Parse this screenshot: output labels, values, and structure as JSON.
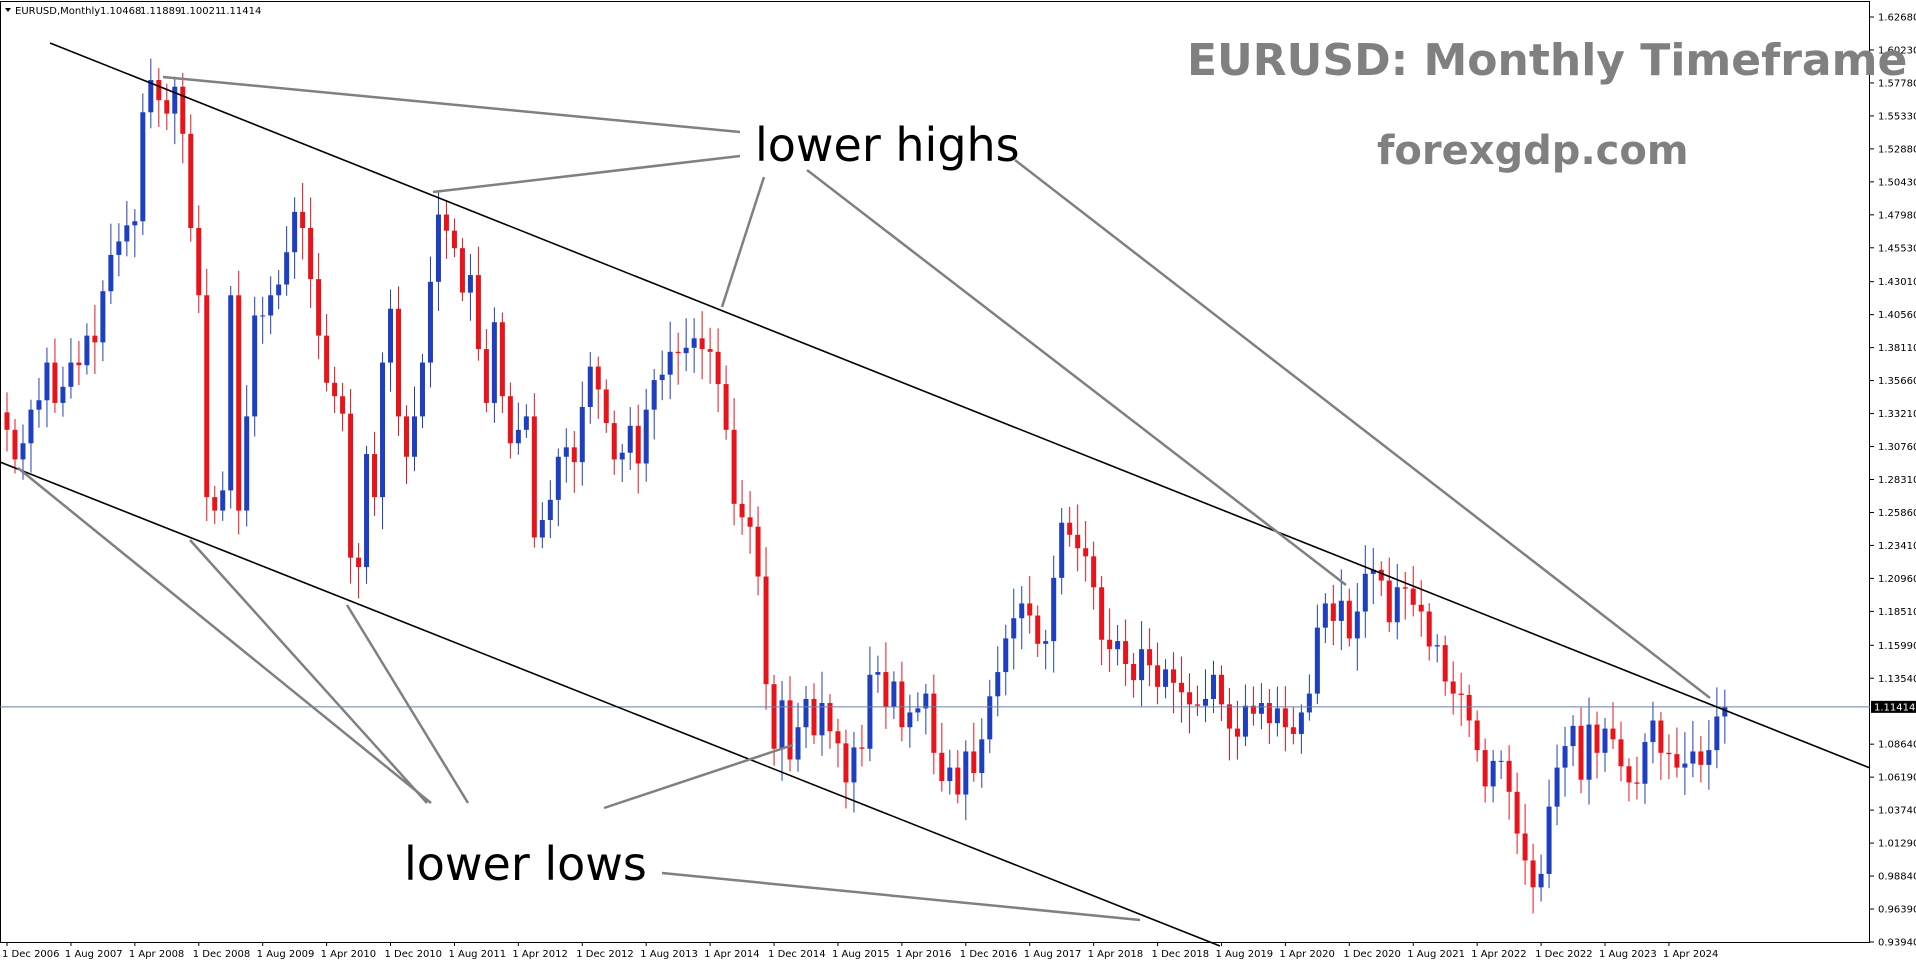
{
  "chart_data": {
    "type": "candlestick",
    "symbol": "EURUSD,Monthly",
    "ohlc_header": [
      "1.10468",
      "1.11889",
      "1.10021",
      "1.11414"
    ],
    "title": "EURUSD: Monthly Timeframe",
    "subtitle": "forexgdp.com",
    "current_price": "1.11414",
    "current_price_value": 1.11414,
    "y_ticks": [
      1.6268,
      1.6023,
      1.5778,
      1.5533,
      1.5288,
      1.5043,
      1.4798,
      1.4553,
      1.4301,
      1.4056,
      1.3811,
      1.3566,
      1.3321,
      1.3076,
      1.2831,
      1.2586,
      1.2341,
      1.2096,
      1.1851,
      1.1599,
      1.1354,
      1.0864,
      1.0619,
      1.0374,
      1.0129,
      0.9884,
      0.9639,
      0.9394
    ],
    "y_tick_labels": [
      "1.62680",
      "1.60230",
      "1.57780",
      "1.55330",
      "1.52880",
      "1.50430",
      "1.47980",
      "1.45530",
      "1.43010",
      "1.40560",
      "1.38110",
      "1.35660",
      "1.33210",
      "1.30760",
      "1.28310",
      "1.25860",
      "1.23410",
      "1.20960",
      "1.18510",
      "1.15990",
      "1.13540",
      "1.08640",
      "1.06190",
      "1.03740",
      "1.01290",
      "0.98840",
      "0.96390",
      "0.93940"
    ],
    "ylim": [
      0.9394,
      1.6268
    ],
    "x_labels": [
      "1 Dec 2006",
      "1 Aug 2007",
      "1 Apr 2008",
      "1 Dec 2008",
      "1 Aug 2009",
      "1 Apr 2010",
      "1 Dec 2010",
      "1 Aug 2011",
      "1 Apr 2012",
      "1 Dec 2012",
      "1 Aug 2013",
      "1 Apr 2014",
      "1 Dec 2014",
      "1 Aug 2015",
      "1 Apr 2016",
      "1 Dec 2016",
      "1 Aug 2017",
      "1 Apr 2018",
      "1 Dec 2018",
      "1 Aug 2019",
      "1 Apr 2020",
      "1 Dec 2020",
      "1 Aug 2021",
      "1 Apr 2022",
      "1 Dec 2022",
      "1 Aug 2023",
      "1 Apr 2024"
    ],
    "x_label_months": [
      0,
      8,
      16,
      24,
      32,
      40,
      48,
      56,
      64,
      72,
      80,
      88,
      96,
      104,
      112,
      120,
      128,
      136,
      144,
      152,
      160,
      168,
      176,
      184,
      192,
      200,
      208
    ],
    "closes": [
      1.32,
      1.298,
      1.31,
      1.335,
      1.342,
      1.37,
      1.34,
      1.352,
      1.37,
      1.368,
      1.39,
      1.385,
      1.423,
      1.45,
      1.46,
      1.472,
      1.475,
      1.556,
      1.58,
      1.565,
      1.555,
      1.575,
      1.54,
      1.47,
      1.42,
      1.27,
      1.26,
      1.275,
      1.42,
      1.26,
      1.33,
      1.405,
      1.405,
      1.42,
      1.428,
      1.452,
      1.482,
      1.47,
      1.432,
      1.39,
      1.355,
      1.345,
      1.332,
      1.225,
      1.218,
      1.302,
      1.27,
      1.37,
      1.41,
      1.33,
      1.3,
      1.33,
      1.37,
      1.43,
      1.48,
      1.468,
      1.455,
      1.422,
      1.435,
      1.38,
      1.34,
      1.4,
      1.345,
      1.31,
      1.32,
      1.33,
      1.24,
      1.253,
      1.268,
      1.3,
      1.307,
      1.296,
      1.337,
      1.367,
      1.35,
      1.325,
      1.298,
      1.303,
      1.323,
      1.295,
      1.335,
      1.357,
      1.361,
      1.378,
      1.377,
      1.381,
      1.388,
      1.38,
      1.378,
      1.354,
      1.32,
      1.265,
      1.255,
      1.248,
      1.211,
      1.131,
      1.083,
      1.119,
      1.075,
      1.099,
      1.12,
      1.093,
      1.117,
      1.096,
      1.087,
      1.058,
      1.084,
      1.083,
      1.138,
      1.14,
      1.114,
      1.133,
      1.099,
      1.11,
      1.113,
      1.124,
      1.08,
      1.059,
      1.069,
      1.049,
      1.081,
      1.065,
      1.09,
      1.122,
      1.14,
      1.165,
      1.18,
      1.191,
      1.182,
      1.161,
      1.163,
      1.21,
      1.251,
      1.242,
      1.232,
      1.226,
      1.203,
      1.164,
      1.157,
      1.163,
      1.146,
      1.134,
      1.157,
      1.145,
      1.129,
      1.142,
      1.132,
      1.125,
      1.116,
      1.115,
      1.12,
      1.138,
      1.116,
      1.098,
      1.092,
      1.115,
      1.109,
      1.117,
      1.102,
      1.113,
      1.099,
      1.094,
      1.11,
      1.124,
      1.173,
      1.191,
      1.178,
      1.193,
      1.165,
      1.185,
      1.213,
      1.216,
      1.208,
      1.177,
      1.203,
      1.202,
      1.19,
      1.185,
      1.159,
      1.16,
      1.133,
      1.124,
      1.123,
      1.104,
      1.082,
      1.055,
      1.074,
      1.074,
      1.051,
      1.02,
      1.0,
      0.98,
      0.99,
      1.04,
      1.069,
      1.085,
      1.1,
      1.06,
      1.101,
      1.08,
      1.098,
      1.09,
      1.07,
      1.058,
      1.057,
      1.088,
      1.104,
      1.08,
      1.079,
      1.069,
      1.072,
      1.081,
      1.071,
      1.082,
      1.107,
      1.114
    ]
  },
  "annotations": {
    "lower_highs_label": "lower highs",
    "lower_lows_label": "lower lows"
  },
  "colors": {
    "bull": "#1e3fbf",
    "bear": "#e8141c",
    "trendline": "#000000",
    "pointer": "#808080",
    "price_line": "#6b7fa8",
    "price_box": "#000000"
  }
}
